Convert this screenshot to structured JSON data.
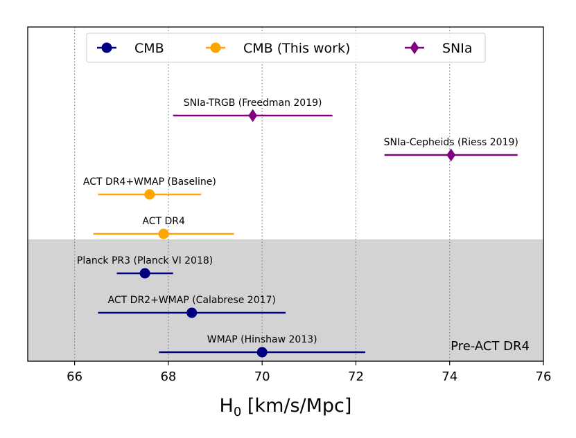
{
  "chart_data": {
    "type": "scatter",
    "title": "",
    "xlabel_main": "H",
    "xlabel_sub": "0",
    "xlabel_rest": " [km/s/Mpc]",
    "ylabel": "",
    "xlim": [
      65,
      76
    ],
    "xticks": [
      66,
      68,
      70,
      72,
      74,
      76
    ],
    "grid": "vertical dotted at x ticks",
    "legend": {
      "placement": "top-center",
      "entries": [
        {
          "name": "CMB",
          "color": "#000080",
          "marker": "circle"
        },
        {
          "name": "CMB (This work)",
          "color": "#FFA500",
          "marker": "circle"
        },
        {
          "name": "SNIa",
          "color": "#800080",
          "marker": "diamond"
        }
      ]
    },
    "shaded_region": {
      "label": "Pre-ACT DR4",
      "color": "#d3d3d3",
      "covers_series": "CMB"
    },
    "points": [
      {
        "label": "SNIa-TRGB (Freedman 2019)",
        "series": "SNIa",
        "value": 69.8,
        "low": 68.1,
        "high": 71.5
      },
      {
        "label": "SNIa-Cepheids (Riess 2019)",
        "series": "SNIa",
        "value": 74.03,
        "low": 72.61,
        "high": 75.45
      },
      {
        "label": "ACT DR4+WMAP (Baseline)",
        "series": "CMB (This work)",
        "value": 67.6,
        "low": 66.5,
        "high": 68.7
      },
      {
        "label": "ACT DR4",
        "series": "CMB (This work)",
        "value": 67.9,
        "low": 66.4,
        "high": 69.4
      },
      {
        "label": "Planck PR3 (Planck VI 2018)",
        "series": "CMB",
        "value": 67.5,
        "low": 66.9,
        "high": 68.1
      },
      {
        "label": "ACT DR2+WMAP (Calabrese 2017)",
        "series": "CMB",
        "value": 68.5,
        "low": 66.5,
        "high": 70.5
      },
      {
        "label": "WMAP (Hinshaw 2013)",
        "series": "CMB",
        "value": 70.0,
        "low": 67.8,
        "high": 72.2
      }
    ]
  }
}
